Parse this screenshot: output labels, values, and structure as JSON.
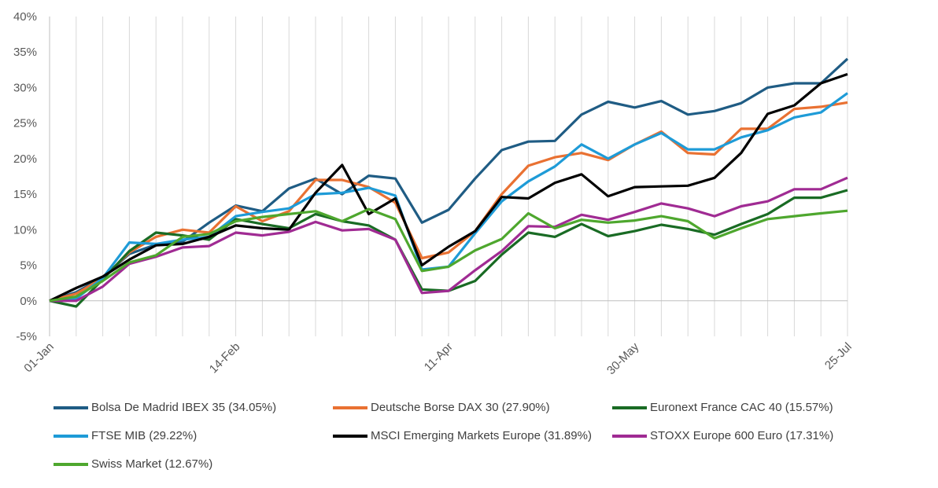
{
  "chart_data": {
    "type": "line",
    "title": "",
    "xlabel": "",
    "ylabel": "",
    "ylim": [
      -5,
      40
    ],
    "y_ticks": [
      -5,
      0,
      5,
      10,
      15,
      20,
      25,
      30,
      35,
      40
    ],
    "y_tick_labels": [
      "-5%",
      "0%",
      "5%",
      "10%",
      "15%",
      "20%",
      "25%",
      "30%",
      "35%",
      "40%"
    ],
    "x_tick_labels": [
      "01-Jan",
      "14-Feb",
      "11-Apr",
      "30-May",
      "25-Jul"
    ],
    "x_tick_index": [
      0,
      7,
      15,
      22,
      30
    ],
    "grid": "vertical",
    "legend_position": "bottom",
    "series": [
      {
        "name": "Bolsa De Madrid IBEX 35 (34.05%)",
        "color": "#1f5c84",
        "values": [
          0,
          1.2,
          3.3,
          6.6,
          7.9,
          8.3,
          11.0,
          13.4,
          12.6,
          15.8,
          17.2,
          15.0,
          17.6,
          17.2,
          11.0,
          12.8,
          17.2,
          21.2,
          22.4,
          22.5,
          26.2,
          28.0,
          27.2,
          28.1,
          26.2,
          26.7,
          27.8,
          30.0,
          30.6,
          30.6,
          34.05
        ]
      },
      {
        "name": "Deutsche Borse DAX 30 (27.90%)",
        "color": "#e97132",
        "values": [
          0,
          1.0,
          3.2,
          6.8,
          9.0,
          10.0,
          9.6,
          13.3,
          11.2,
          12.6,
          17.0,
          17.0,
          16.0,
          13.8,
          6.0,
          6.8,
          9.8,
          15.0,
          19.0,
          20.2,
          20.8,
          19.8,
          22.0,
          23.8,
          20.8,
          20.6,
          24.2,
          24.2,
          27.0,
          27.3,
          27.9
        ]
      },
      {
        "name": "Euronext France CAC 40 (15.57%)",
        "color": "#196b24",
        "values": [
          0,
          -0.8,
          3.0,
          7.0,
          9.6,
          9.2,
          8.6,
          11.5,
          10.8,
          10.2,
          12.2,
          11.2,
          10.6,
          8.6,
          1.6,
          1.4,
          2.8,
          6.5,
          9.6,
          9.0,
          10.8,
          9.1,
          9.8,
          10.7,
          10.1,
          9.3,
          10.8,
          12.2,
          14.5,
          14.5,
          15.57
        ]
      },
      {
        "name": "FTSE MIB (29.22%)",
        "color": "#1e9bd7",
        "values": [
          0,
          0.3,
          3.2,
          8.2,
          8.0,
          8.6,
          9.0,
          11.9,
          12.5,
          13.0,
          15.0,
          15.2,
          15.9,
          14.8,
          4.4,
          4.8,
          9.5,
          14.0,
          16.8,
          18.9,
          22.0,
          20.0,
          22.0,
          23.6,
          21.3,
          21.3,
          23.0,
          24.0,
          25.8,
          26.5,
          29.22
        ]
      },
      {
        "name": "MSCI Emerging Markets Europe (31.89%)",
        "color": "#000000",
        "values": [
          0,
          1.8,
          3.4,
          5.8,
          7.8,
          8.0,
          9.0,
          10.6,
          10.2,
          10.0,
          15.2,
          19.1,
          12.2,
          14.4,
          5.0,
          7.6,
          9.8,
          14.6,
          14.4,
          16.6,
          17.8,
          14.7,
          16.0,
          16.1,
          16.2,
          17.3,
          20.8,
          26.3,
          27.5,
          30.6,
          31.89
        ]
      },
      {
        "name": "STOXX Europe 600 Euro (17.31%)",
        "color": "#a02b93",
        "values": [
          0,
          0.0,
          2.0,
          5.2,
          6.2,
          7.5,
          7.7,
          9.6,
          9.2,
          9.7,
          11.1,
          9.9,
          10.1,
          8.6,
          1.1,
          1.4,
          4.3,
          7.0,
          10.5,
          10.4,
          12.1,
          11.4,
          12.5,
          13.7,
          13.0,
          11.9,
          13.3,
          14.0,
          15.7,
          15.7,
          17.31
        ]
      },
      {
        "name": "Swiss Market (12.67%)",
        "color": "#4ea72e",
        "values": [
          0,
          0.6,
          2.8,
          5.4,
          6.4,
          9.0,
          9.4,
          11.2,
          11.8,
          12.2,
          12.6,
          11.2,
          12.9,
          11.5,
          4.2,
          4.8,
          7.1,
          8.7,
          12.3,
          10.2,
          11.4,
          11.0,
          11.3,
          11.9,
          11.2,
          8.8,
          10.2,
          11.5,
          11.9,
          12.3,
          12.67
        ]
      }
    ]
  }
}
